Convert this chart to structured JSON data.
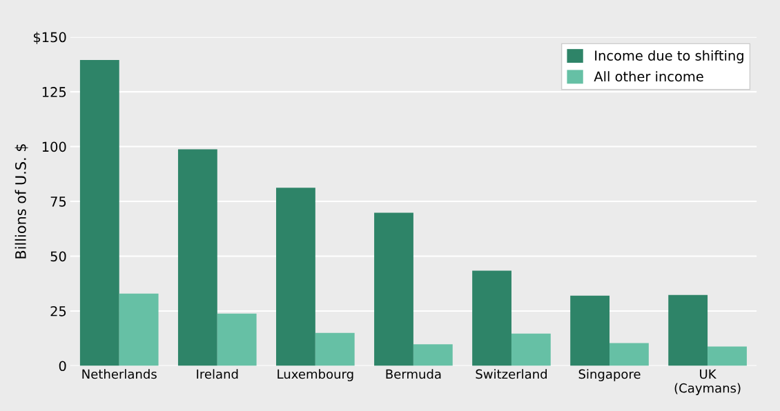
{
  "chart_data": {
    "type": "bar",
    "ylabel": "Billions of U.S. $",
    "categories": [
      "Netherlands",
      "Ireland",
      "Luxembourg",
      "Bermuda",
      "Switzerland",
      "Singapore",
      "UK\n(Caymans)"
    ],
    "series": [
      {
        "name": "Income due to shifting",
        "color": "#2e8468",
        "values": [
          139.5,
          98.8,
          81.2,
          69.8,
          43.4,
          32,
          32.3
        ]
      },
      {
        "name": "All other income",
        "color": "#66c0a5",
        "values": [
          32.9,
          23.8,
          15,
          9.8,
          14.7,
          10.4,
          8.8
        ]
      }
    ],
    "ylim": [
      0,
      150
    ],
    "yticks": [
      0,
      25,
      50,
      75,
      100,
      125,
      {
        "value": 150,
        "label": "$150"
      }
    ],
    "grid": "y",
    "legend": "top right"
  }
}
